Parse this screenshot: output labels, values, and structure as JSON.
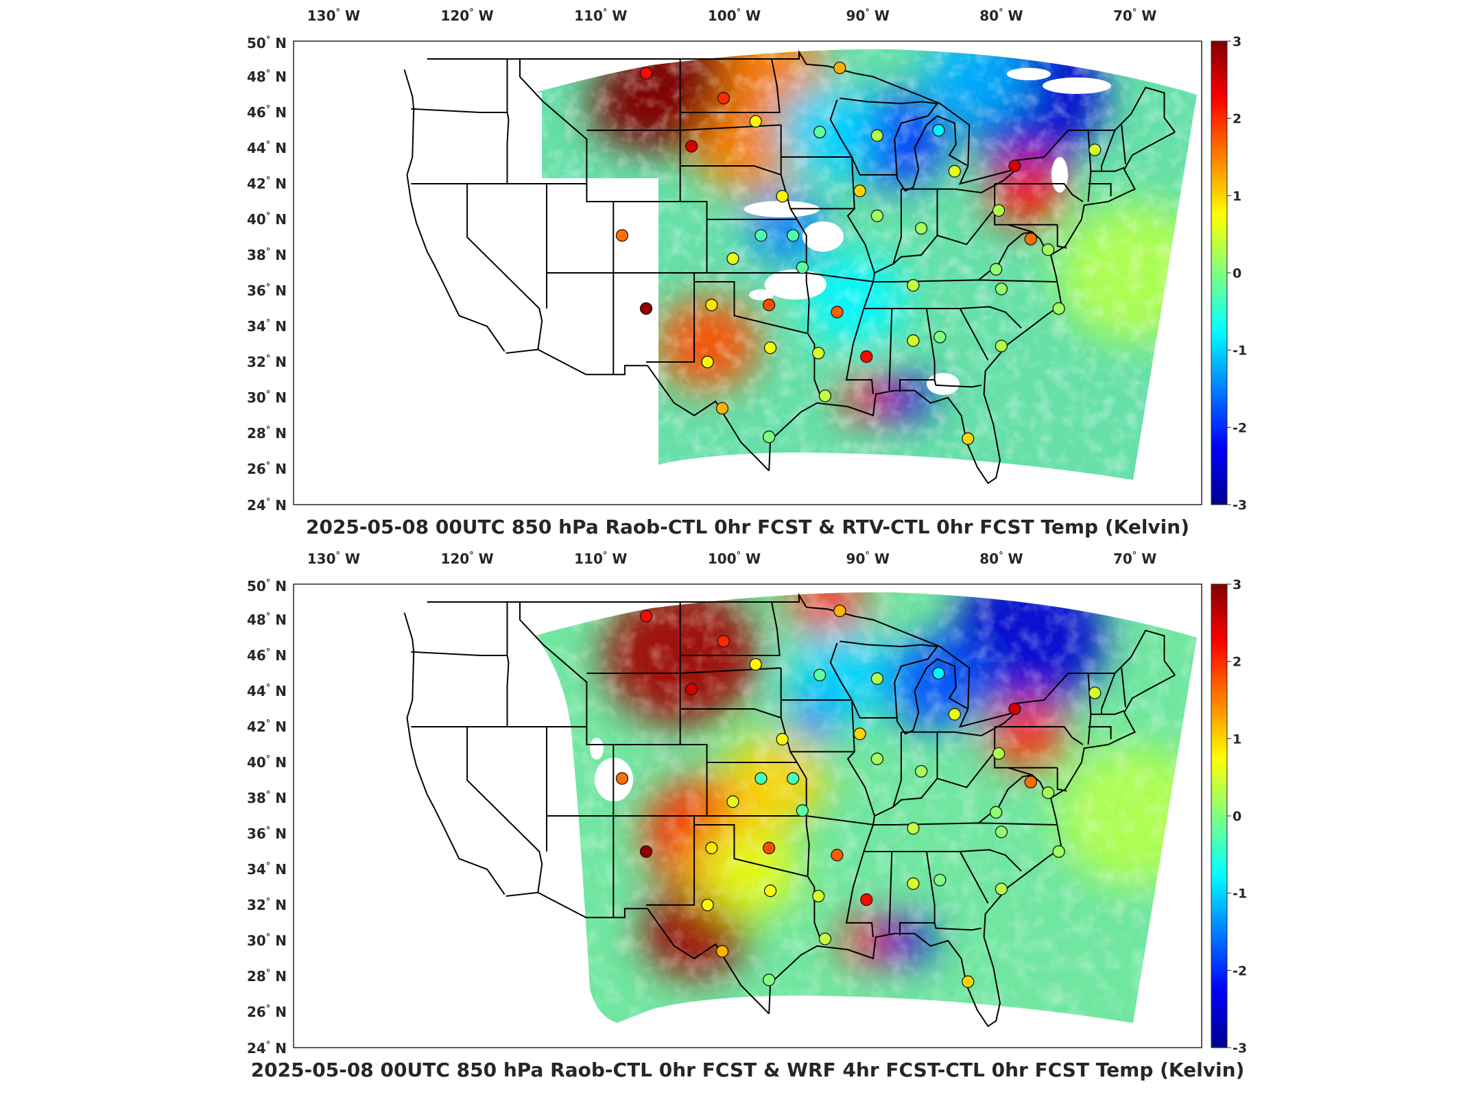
{
  "colors": {
    "jet_low": "#00008f",
    "jet_high": "#800000",
    "frame": "#262626",
    "boundary": "#000000"
  },
  "axes": {
    "lon_ticks": [
      {
        "num": "130",
        "dir": "W"
      },
      {
        "num": "120",
        "dir": "W"
      },
      {
        "num": "110",
        "dir": "W"
      },
      {
        "num": "100",
        "dir": "W"
      },
      {
        "num": "90",
        "dir": "W"
      },
      {
        "num": "80",
        "dir": "W"
      },
      {
        "num": "70",
        "dir": "W"
      }
    ],
    "lat_ticks": [
      {
        "num": "50",
        "dir": "N"
      },
      {
        "num": "48",
        "dir": "N"
      },
      {
        "num": "46",
        "dir": "N"
      },
      {
        "num": "44",
        "dir": "N"
      },
      {
        "num": "42",
        "dir": "N"
      },
      {
        "num": "40",
        "dir": "N"
      },
      {
        "num": "38",
        "dir": "N"
      },
      {
        "num": "36",
        "dir": "N"
      },
      {
        "num": "34",
        "dir": "N"
      },
      {
        "num": "32",
        "dir": "N"
      },
      {
        "num": "30",
        "dir": "N"
      },
      {
        "num": "28",
        "dir": "N"
      },
      {
        "num": "26",
        "dir": "N"
      },
      {
        "num": "24",
        "dir": "N"
      }
    ],
    "degree_symbol": "°"
  },
  "colorbar": {
    "ticks": [
      "3",
      "2",
      "1",
      "0",
      "-1",
      "-2",
      "-3"
    ],
    "range": [
      -3,
      3
    ]
  },
  "panels": [
    {
      "title": "2025-05-08 00UTC 850 hPa Raob-CTL 0hr FCST & RTV-CTL 0hr FCST Temp (Kelvin)"
    },
    {
      "title": "2025-05-08 00UTC 850 hPa Raob-CTL 0hr FCST & WRF 4hr FCST-CTL 0hr FCST Temp (Kelvin)"
    }
  ],
  "stations": {
    "panel1": [
      {
        "lon": -106.6,
        "lat": 48.2,
        "v": 2.2
      },
      {
        "lon": -100.8,
        "lat": 46.8,
        "v": 2.0
      },
      {
        "lon": -98.4,
        "lat": 45.5,
        "v": 0.8
      },
      {
        "lon": -93.6,
        "lat": 44.9,
        "v": -0.2
      },
      {
        "lon": -92.1,
        "lat": 48.5,
        "v": 1.2
      },
      {
        "lon": -103.2,
        "lat": 44.1,
        "v": 2.5
      },
      {
        "lon": -84.7,
        "lat": 45.0,
        "v": -0.8
      },
      {
        "lon": -89.3,
        "lat": 44.7,
        "v": 0.3
      },
      {
        "lon": -96.4,
        "lat": 41.3,
        "v": 0.8
      },
      {
        "lon": -90.6,
        "lat": 41.6,
        "v": 1.0
      },
      {
        "lon": -83.5,
        "lat": 42.7,
        "v": 0.6
      },
      {
        "lon": -79.0,
        "lat": 43.0,
        "v": 2.5
      },
      {
        "lon": -73.0,
        "lat": 43.9,
        "v": 0.5
      },
      {
        "lon": -108.4,
        "lat": 39.1,
        "v": 1.6
      },
      {
        "lon": -89.3,
        "lat": 40.2,
        "v": 0.2
      },
      {
        "lon": -86.0,
        "lat": 39.5,
        "v": 0.2
      },
      {
        "lon": -80.2,
        "lat": 40.5,
        "v": 0.3
      },
      {
        "lon": -98.0,
        "lat": 39.1,
        "v": -0.3
      },
      {
        "lon": -95.6,
        "lat": 39.1,
        "v": -0.3
      },
      {
        "lon": -100.1,
        "lat": 37.8,
        "v": 0.6
      },
      {
        "lon": -77.8,
        "lat": 38.9,
        "v": 1.6
      },
      {
        "lon": -76.5,
        "lat": 38.3,
        "v": 0.2
      },
      {
        "lon": -94.9,
        "lat": 37.3,
        "v": -0.2
      },
      {
        "lon": -86.6,
        "lat": 36.3,
        "v": 0.4
      },
      {
        "lon": -80.4,
        "lat": 37.2,
        "v": 0.1
      },
      {
        "lon": -80.0,
        "lat": 36.1,
        "v": 0.1
      },
      {
        "lon": -106.6,
        "lat": 35.0,
        "v": 2.9
      },
      {
        "lon": -101.7,
        "lat": 35.2,
        "v": 0.9
      },
      {
        "lon": -97.4,
        "lat": 35.2,
        "v": 1.8
      },
      {
        "lon": -92.3,
        "lat": 34.8,
        "v": 1.7
      },
      {
        "lon": -75.7,
        "lat": 35.0,
        "v": 0.2
      },
      {
        "lon": -102.0,
        "lat": 32.0,
        "v": 0.8
      },
      {
        "lon": -97.3,
        "lat": 32.8,
        "v": 0.7
      },
      {
        "lon": -93.7,
        "lat": 32.5,
        "v": 0.5
      },
      {
        "lon": -90.1,
        "lat": 32.3,
        "v": 2.2
      },
      {
        "lon": -86.6,
        "lat": 33.2,
        "v": 0.5
      },
      {
        "lon": -84.6,
        "lat": 33.4,
        "v": 0.0
      },
      {
        "lon": -80.0,
        "lat": 32.9,
        "v": 0.3
      },
      {
        "lon": -100.9,
        "lat": 29.4,
        "v": 1.2
      },
      {
        "lon": -97.4,
        "lat": 27.8,
        "v": 0.0
      },
      {
        "lon": -93.2,
        "lat": 30.1,
        "v": 0.4
      },
      {
        "lon": -82.5,
        "lat": 27.7,
        "v": 1.0
      }
    ],
    "panel2": [
      {
        "lon": -106.6,
        "lat": 48.2,
        "v": 2.2
      },
      {
        "lon": -100.8,
        "lat": 46.8,
        "v": 2.0
      },
      {
        "lon": -98.4,
        "lat": 45.5,
        "v": 0.8
      },
      {
        "lon": -93.6,
        "lat": 44.9,
        "v": -0.2
      },
      {
        "lon": -92.1,
        "lat": 48.5,
        "v": 1.2
      },
      {
        "lon": -103.2,
        "lat": 44.1,
        "v": 2.5
      },
      {
        "lon": -84.7,
        "lat": 45.0,
        "v": -0.8
      },
      {
        "lon": -89.3,
        "lat": 44.7,
        "v": 0.3
      },
      {
        "lon": -96.4,
        "lat": 41.3,
        "v": 0.8
      },
      {
        "lon": -90.6,
        "lat": 41.6,
        "v": 1.0
      },
      {
        "lon": -83.5,
        "lat": 42.7,
        "v": 0.6
      },
      {
        "lon": -79.0,
        "lat": 43.0,
        "v": 2.5
      },
      {
        "lon": -73.0,
        "lat": 43.9,
        "v": 0.5
      },
      {
        "lon": -108.4,
        "lat": 39.1,
        "v": 1.6
      },
      {
        "lon": -89.3,
        "lat": 40.2,
        "v": 0.2
      },
      {
        "lon": -86.0,
        "lat": 39.5,
        "v": 0.2
      },
      {
        "lon": -80.2,
        "lat": 40.5,
        "v": 0.3
      },
      {
        "lon": -98.0,
        "lat": 39.1,
        "v": -0.3
      },
      {
        "lon": -95.6,
        "lat": 39.1,
        "v": -0.3
      },
      {
        "lon": -100.1,
        "lat": 37.8,
        "v": 0.6
      },
      {
        "lon": -77.8,
        "lat": 38.9,
        "v": 1.6
      },
      {
        "lon": -76.5,
        "lat": 38.3,
        "v": 0.2
      },
      {
        "lon": -94.9,
        "lat": 37.3,
        "v": -0.2
      },
      {
        "lon": -86.6,
        "lat": 36.3,
        "v": 0.4
      },
      {
        "lon": -80.4,
        "lat": 37.2,
        "v": 0.1
      },
      {
        "lon": -80.0,
        "lat": 36.1,
        "v": 0.1
      },
      {
        "lon": -106.6,
        "lat": 35.0,
        "v": 2.9
      },
      {
        "lon": -101.7,
        "lat": 35.2,
        "v": 0.9
      },
      {
        "lon": -97.4,
        "lat": 35.2,
        "v": 1.8
      },
      {
        "lon": -92.3,
        "lat": 34.8,
        "v": 1.7
      },
      {
        "lon": -75.7,
        "lat": 35.0,
        "v": 0.2
      },
      {
        "lon": -102.0,
        "lat": 32.0,
        "v": 0.8
      },
      {
        "lon": -97.3,
        "lat": 32.8,
        "v": 0.7
      },
      {
        "lon": -93.7,
        "lat": 32.5,
        "v": 0.5
      },
      {
        "lon": -90.1,
        "lat": 32.3,
        "v": 2.2
      },
      {
        "lon": -86.6,
        "lat": 33.2,
        "v": 0.5
      },
      {
        "lon": -84.6,
        "lat": 33.4,
        "v": 0.0
      },
      {
        "lon": -80.0,
        "lat": 32.9,
        "v": 0.3
      },
      {
        "lon": -100.9,
        "lat": 29.4,
        "v": 1.2
      },
      {
        "lon": -97.4,
        "lat": 27.8,
        "v": 0.0
      },
      {
        "lon": -93.2,
        "lat": 30.1,
        "v": 0.4
      },
      {
        "lon": -82.5,
        "lat": 27.7,
        "v": 1.0
      }
    ]
  },
  "field_features": {
    "panel1": [
      {
        "lon": -103,
        "lat": 47.5,
        "v": 3.0,
        "r": 6
      },
      {
        "lon": -107,
        "lat": 46.5,
        "v": 3.0,
        "r": 4
      },
      {
        "lon": -97,
        "lat": 48.5,
        "v": 1.5,
        "r": 4
      },
      {
        "lon": -99,
        "lat": 44.0,
        "v": 1.5,
        "r": 4
      },
      {
        "lon": -78,
        "lat": 47.0,
        "v": -2.5,
        "r": 6
      },
      {
        "lon": -82,
        "lat": 48.0,
        "v": -1.2,
        "r": 4
      },
      {
        "lon": -88,
        "lat": 44.5,
        "v": -2.0,
        "r": 4
      },
      {
        "lon": -93,
        "lat": 45.0,
        "v": -1.0,
        "r": 4
      },
      {
        "lon": -78,
        "lat": 41.5,
        "v": 2.2,
        "r": 3
      },
      {
        "lon": -96,
        "lat": 39.5,
        "v": -1.5,
        "r": 3
      },
      {
        "lon": -102,
        "lat": 33.0,
        "v": 1.8,
        "r": 4
      },
      {
        "lon": -90,
        "lat": 30.0,
        "v": 2.2,
        "r": 2
      },
      {
        "lon": -87,
        "lat": 30.0,
        "v": -2.5,
        "r": 2
      },
      {
        "lon": -70,
        "lat": 37.0,
        "v": 0.3,
        "r": 6
      },
      {
        "lon": -91,
        "lat": 35.5,
        "v": -0.8,
        "r": 4
      }
    ],
    "panel2": [
      {
        "lon": -104,
        "lat": 46.0,
        "v": 2.8,
        "r": 6
      },
      {
        "lon": -102,
        "lat": 36.0,
        "v": 2.0,
        "r": 5
      },
      {
        "lon": -103,
        "lat": 30.5,
        "v": 2.8,
        "r": 4
      },
      {
        "lon": -93,
        "lat": 49.0,
        "v": 2.0,
        "r": 3
      },
      {
        "lon": -78,
        "lat": 47.0,
        "v": -2.5,
        "r": 6
      },
      {
        "lon": -85,
        "lat": 44.5,
        "v": -1.8,
        "r": 4
      },
      {
        "lon": -92,
        "lat": 45.0,
        "v": -1.0,
        "r": 4
      },
      {
        "lon": -78,
        "lat": 41.5,
        "v": 2.0,
        "r": 3
      },
      {
        "lon": -94,
        "lat": 42.5,
        "v": -1.5,
        "r": 2
      },
      {
        "lon": -90,
        "lat": 30.0,
        "v": 2.2,
        "r": 2
      },
      {
        "lon": -87,
        "lat": 30.0,
        "v": -2.5,
        "r": 2
      },
      {
        "lon": -70,
        "lat": 37.0,
        "v": 0.3,
        "r": 6
      },
      {
        "lon": -97,
        "lat": 39.0,
        "v": 1.0,
        "r": 4
      },
      {
        "lon": -99,
        "lat": 34.0,
        "v": 0.6,
        "r": 4
      }
    ]
  }
}
